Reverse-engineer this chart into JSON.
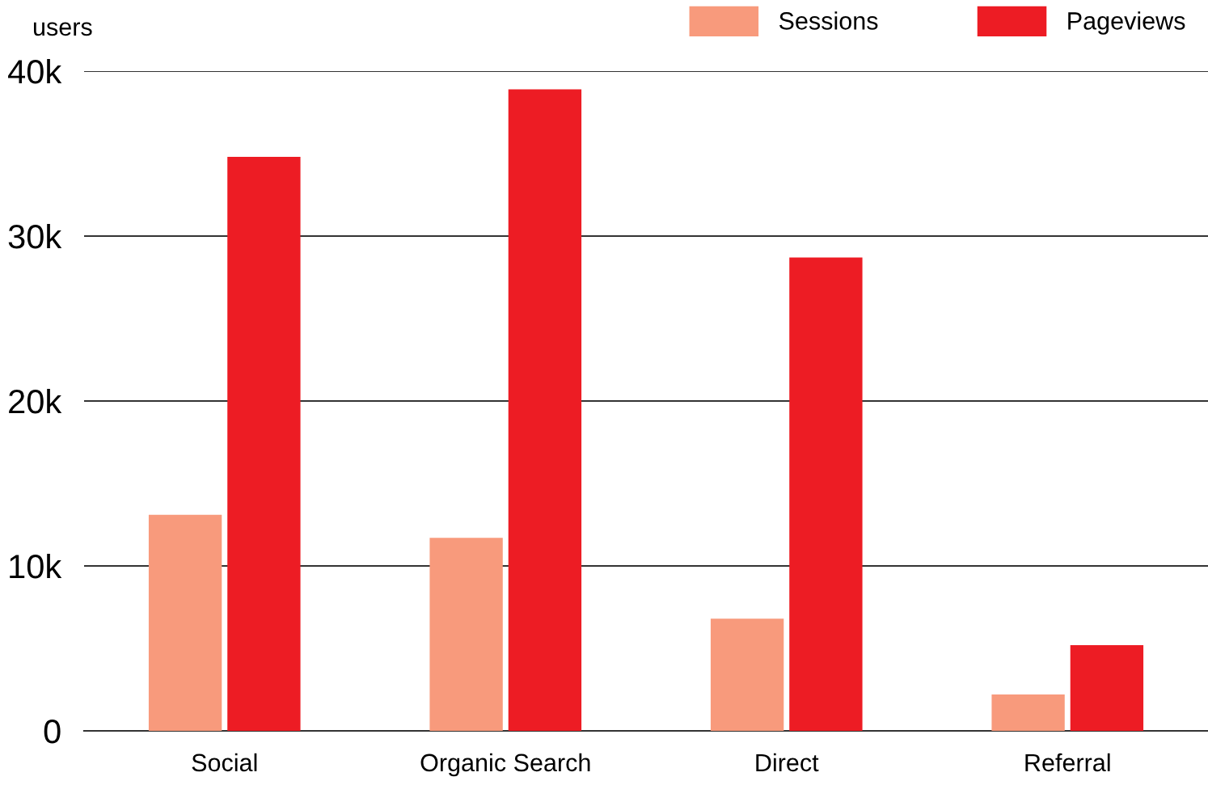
{
  "chart_data": {
    "type": "bar",
    "ylabel": "users",
    "categories": [
      "Social",
      "Organic Search",
      "Direct",
      "Referral"
    ],
    "series": [
      {
        "name": "Sessions",
        "color": "#f89a7c",
        "values": [
          13100,
          11700,
          6800,
          2200
        ]
      },
      {
        "name": "Pageviews",
        "color": "#ed1c24",
        "values": [
          34800,
          38900,
          28700,
          5200
        ]
      }
    ],
    "ylim": [
      0,
      40000
    ],
    "yticks": [
      0,
      {
        "value": 10000,
        "label": "10k"
      },
      {
        "value": 20000,
        "label": "20k"
      },
      {
        "value": 30000,
        "label": "30k"
      },
      {
        "value": 40000,
        "label": "40k"
      }
    ],
    "grid": "y",
    "legend": "top right"
  }
}
